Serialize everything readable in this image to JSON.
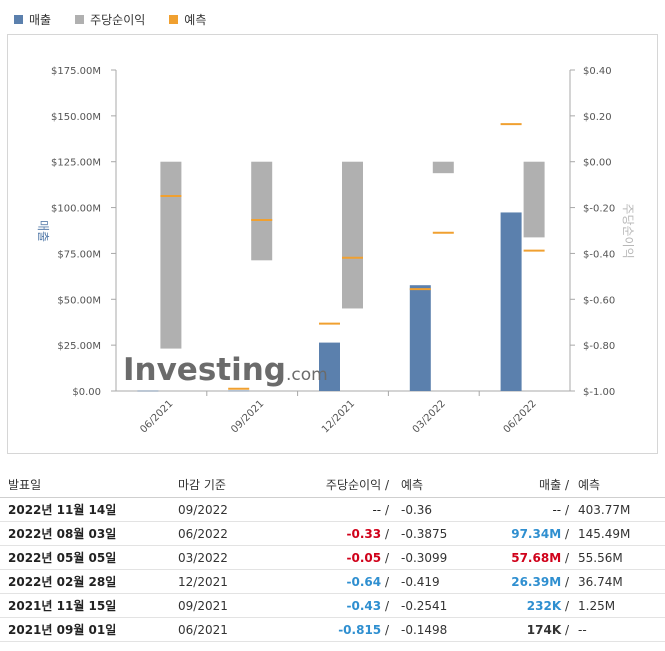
{
  "legend": {
    "revenue": "매출",
    "eps": "주당순이익",
    "forecast": "예측"
  },
  "colors": {
    "revenue": "#5b80ad",
    "eps": "#b0b0b0",
    "forecast": "#f0a030"
  },
  "chart_data": {
    "type": "bar",
    "categories": [
      "06/2021",
      "09/2021",
      "12/2021",
      "03/2022",
      "06/2022"
    ],
    "left_axis": {
      "label": "매출",
      "range": [
        0,
        175
      ],
      "ticks": [
        "$0.00",
        "$25.00M",
        "$50.00M",
        "$75.00M",
        "$100.00M",
        "$125.00M",
        "$150.00M",
        "$175.00M"
      ]
    },
    "right_axis": {
      "label": "주당순이익",
      "range": [
        -1.0,
        0.4
      ],
      "ticks": [
        "$-1.00",
        "$-0.80",
        "$-0.60",
        "$-0.40",
        "$-0.20",
        "$0.00",
        "$0.20",
        "$0.40"
      ]
    },
    "series": [
      {
        "name": "매출",
        "axis": "left",
        "values": [
          0.174,
          0.232,
          26.39,
          57.68,
          97.34
        ]
      },
      {
        "name": "주당순이익",
        "axis": "right",
        "values": [
          -0.815,
          -0.43,
          -0.64,
          -0.05,
          -0.33
        ]
      },
      {
        "name": "예측",
        "axis": "mixed",
        "revenue_forecast": [
          null,
          1.25,
          36.74,
          55.56,
          145.49
        ],
        "eps_forecast": [
          -0.1498,
          -0.2541,
          -0.419,
          -0.3099,
          -0.3875
        ]
      }
    ]
  },
  "watermark": {
    "brand": "Investing",
    "suffix": ".com"
  },
  "table": {
    "headers": {
      "date": "발표일",
      "period": "마감 기준",
      "eps": "주당순이익",
      "eps_sep": "/",
      "eps_forecast": "예측",
      "revenue": "매출",
      "revenue_sep": "/",
      "revenue_forecast": "예측"
    },
    "rows": [
      {
        "date": "2022년 11월 14일",
        "period": "09/2022",
        "eps": "--",
        "eps_style": "plain",
        "eps_forecast": "-0.36",
        "revenue": "--",
        "revenue_style": "plain",
        "revenue_forecast": "403.77M"
      },
      {
        "date": "2022년 08월 03일",
        "period": "06/2022",
        "eps": "-0.33",
        "eps_style": "red",
        "eps_forecast": "-0.3875",
        "revenue": "97.34M",
        "revenue_style": "blue",
        "revenue_forecast": "145.49M"
      },
      {
        "date": "2022년 05월 05일",
        "period": "03/2022",
        "eps": "-0.05",
        "eps_style": "red",
        "eps_forecast": "-0.3099",
        "revenue": "57.68M",
        "revenue_style": "red",
        "revenue_forecast": "55.56M"
      },
      {
        "date": "2022년 02월 28일",
        "period": "12/2021",
        "eps": "-0.64",
        "eps_style": "blue",
        "eps_forecast": "-0.419",
        "revenue": "26.39M",
        "revenue_style": "blue",
        "revenue_forecast": "36.74M"
      },
      {
        "date": "2021년 11월 15일",
        "period": "09/2021",
        "eps": "-0.43",
        "eps_style": "blue",
        "eps_forecast": "-0.2541",
        "revenue": "232K",
        "revenue_style": "blue",
        "revenue_forecast": "1.25M"
      },
      {
        "date": "2021년 09월 01일",
        "period": "06/2021",
        "eps": "-0.815",
        "eps_style": "blue",
        "eps_forecast": "-0.1498",
        "revenue": "174K",
        "revenue_style": "bold",
        "revenue_forecast": "--"
      }
    ]
  }
}
